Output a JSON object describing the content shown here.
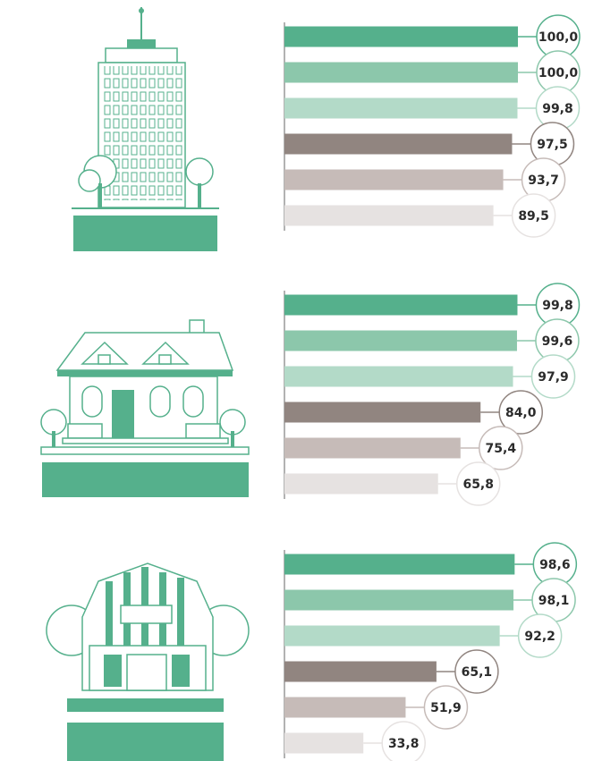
{
  "chart_data": [
    {
      "type": "bar",
      "orientation": "horizontal",
      "xlim": [
        0,
        100
      ],
      "colors": [
        "#55b08c",
        "#8cc7ab",
        "#b3dac8",
        "#918580",
        "#c6bbb8",
        "#e6e2e1"
      ],
      "values": [
        100.0,
        100.0,
        99.8,
        97.5,
        93.7,
        89.5
      ],
      "value_labels": [
        "100,0",
        "100,0",
        "99,8",
        "97,5",
        "93,7",
        "89,5"
      ]
    },
    {
      "type": "bar",
      "orientation": "horizontal",
      "xlim": [
        0,
        100
      ],
      "colors": [
        "#55b08c",
        "#8cc7ab",
        "#b3dac8",
        "#918580",
        "#c6bbb8",
        "#e6e2e1"
      ],
      "values": [
        99.8,
        99.6,
        97.9,
        84.0,
        75.4,
        65.8
      ],
      "value_labels": [
        "99,8",
        "99,6",
        "97,9",
        "84,0",
        "75,4",
        "65,8"
      ]
    },
    {
      "type": "bar",
      "orientation": "horizontal",
      "xlim": [
        0,
        100
      ],
      "colors": [
        "#55b08c",
        "#8cc7ab",
        "#b3dac8",
        "#918580",
        "#c6bbb8",
        "#e6e2e1"
      ],
      "values": [
        98.6,
        98.1,
        92.2,
        65.1,
        51.9,
        33.8
      ],
      "value_labels": [
        "98,6",
        "98,1",
        "92,2",
        "65,1",
        "51,9",
        "33,8"
      ]
    }
  ]
}
